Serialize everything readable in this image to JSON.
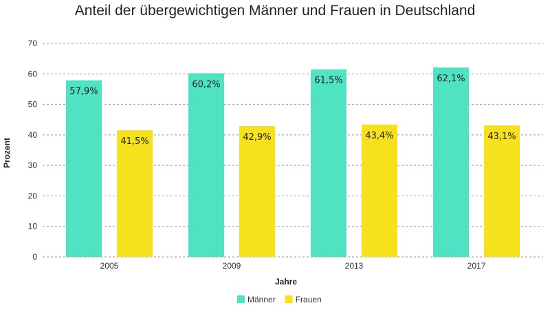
{
  "chart_data": {
    "type": "bar",
    "title": "Anteil der übergewichtigen Männer und Frauen in Deutschland",
    "xlabel": "Jahre",
    "ylabel": "Prozent",
    "categories": [
      "2005",
      "2009",
      "2013",
      "2017"
    ],
    "series": [
      {
        "name": "Männer",
        "color": "#4fe3c4",
        "values": [
          57.9,
          60.2,
          61.5,
          62.1
        ],
        "labels": [
          "57,9%",
          "60,2%",
          "61,5%",
          "62,1%"
        ]
      },
      {
        "name": "Frauen",
        "color": "#f5e11c",
        "values": [
          41.5,
          42.9,
          43.4,
          43.1
        ],
        "labels": [
          "41,5%",
          "42,9%",
          "43,4%",
          "43,1%"
        ]
      }
    ],
    "ylim": [
      0,
      70
    ],
    "yticks": [
      0,
      10,
      20,
      30,
      40,
      50,
      60,
      70
    ],
    "grid": true,
    "legend_position": "bottom-center"
  }
}
